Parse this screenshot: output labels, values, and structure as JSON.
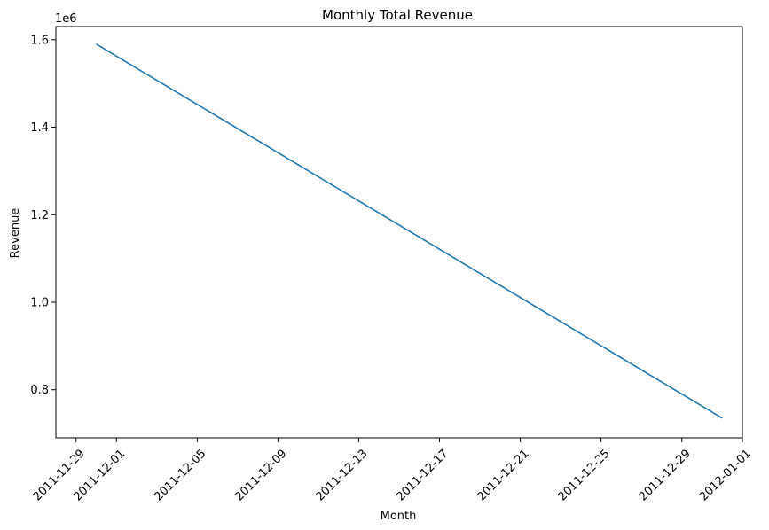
{
  "chart_data": {
    "type": "line",
    "title": "Monthly Total Revenue",
    "xlabel": "Month",
    "ylabel": "Revenue",
    "y_offset_label": "1e6",
    "x_type": "date",
    "xlim": [
      "2011-11-28",
      "2012-01-01"
    ],
    "ylim": [
      0.69,
      1.63
    ],
    "x_ticks": [
      "2011-11-29",
      "2011-12-01",
      "2011-12-05",
      "2011-12-09",
      "2011-12-13",
      "2011-12-17",
      "2011-12-21",
      "2011-12-25",
      "2011-12-29",
      "2012-01-01"
    ],
    "y_ticks": [
      0.8,
      1.0,
      1.2,
      1.4,
      1.6
    ],
    "y_tick_labels": [
      "0.8",
      "1.0",
      "1.2",
      "1.4",
      "1.6"
    ],
    "grid": false,
    "series": [
      {
        "color": "#1f77b4",
        "x": [
          "2011-11-30",
          "2011-12-31"
        ],
        "y": [
          1.59,
          0.735
        ]
      }
    ]
  }
}
